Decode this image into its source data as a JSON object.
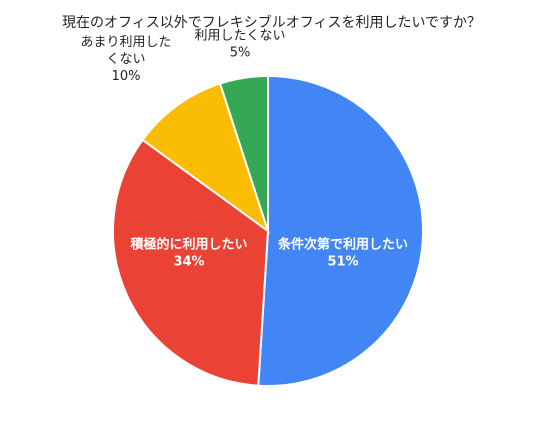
{
  "chart_data": {
    "type": "pie",
    "title": "現在のオフィス以外でフレキシブルオフィスを利用したいですか？",
    "start_angle_deg": 0,
    "direction": "clockwise",
    "slices": [
      {
        "label": "条件次第で利用したい",
        "value": 51,
        "value_label": "51%",
        "color": "#4285f4",
        "label_inside": true
      },
      {
        "label": "積極的に利用したい",
        "value": 34,
        "value_label": "34%",
        "color": "#ea4335",
        "label_inside": true
      },
      {
        "label_lines": [
          "あまり利用した",
          "くない"
        ],
        "value": 10,
        "value_label": "10%",
        "color": "#fbbc04",
        "label_inside": false
      },
      {
        "label": "利用したくない",
        "value": 5,
        "value_label": "5%",
        "color": "#34a853",
        "label_inside": false
      }
    ]
  }
}
